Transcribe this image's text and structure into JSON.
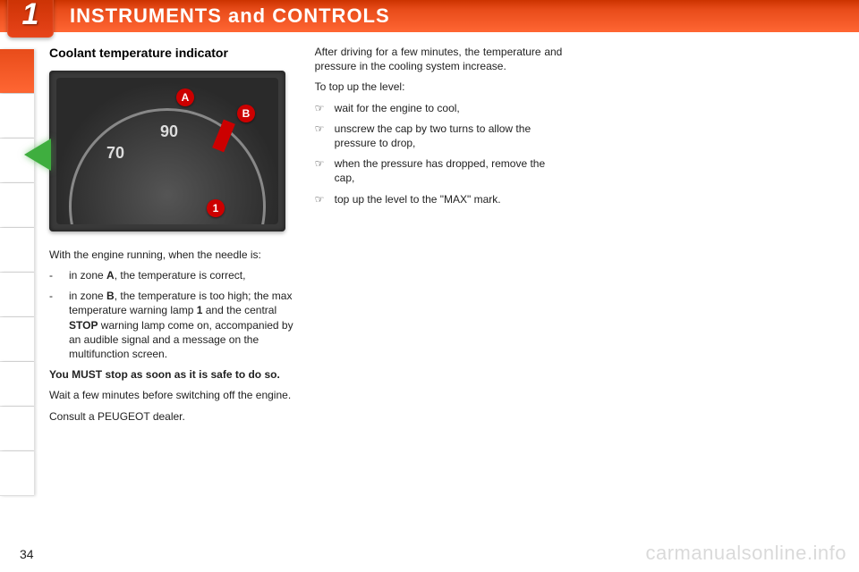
{
  "header": {
    "chapter_num": "1",
    "title": "INSTRUMENTS and CONTROLS",
    "badge_color": "#e8441a",
    "title_color": "#ffffff"
  },
  "gauge": {
    "numbers": {
      "n70": "70",
      "n90": "90"
    },
    "callouts": {
      "a": "A",
      "b": "B",
      "one": "1"
    },
    "callout_color": "#cc0000",
    "dial_bg": "#3a3a3a",
    "text_color": "#dddddd"
  },
  "col1": {
    "heading": "Coolant temperature indicator",
    "intro": "With the engine running, when the needle is:",
    "bullets": [
      "in zone <b>A</b>, the temperature is correct,",
      "in zone <b>B</b>, the temperature is too high; the max temperature warning lamp <b>1</b> and the central <b>STOP</b> warning lamp come on, accompanied by an audible signal and a message on the multifunction screen."
    ],
    "stop_line": "You MUST stop as soon as it is safe to do so.",
    "wait_line": "Wait a few minutes before switching off the engine.",
    "dealer_line": "Consult a PEUGEOT dealer."
  },
  "col2": {
    "para1": "After driving for a few minutes, the temperature and pressure in the cooling system increase.",
    "para2": "To top up the level:",
    "bullets": [
      "wait for the engine to cool,",
      "unscrew the cap by two turns to allow the pressure to drop,",
      "when the pressure has dropped, remove the cap,",
      "top up the level to the \"MAX\" mark."
    ]
  },
  "page_number": "34",
  "watermark": "carmanualsonline.info",
  "colors": {
    "orange_start": "#cc3300",
    "orange_end": "#ff6633",
    "text": "#222222",
    "watermark": "rgba(0,0,0,0.15)"
  }
}
